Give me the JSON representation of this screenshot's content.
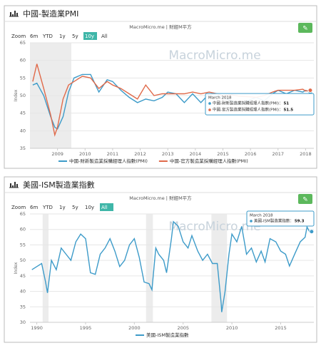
{
  "chart_data": [
    {
      "type": "line",
      "title": "中國-製造業PMI",
      "subtitle": "MacroMicro.me | 財經M平方",
      "watermark": "MacroMicro.me",
      "zoom_buttons": [
        "Zoom",
        "6m",
        "YTD",
        "1y",
        "5y",
        "10y",
        "All"
      ],
      "active_zoom": 5,
      "ylabel": "Index",
      "x": [
        2008.1,
        2008.25,
        2008.5,
        2008.75,
        2008.9,
        2009.0,
        2009.2,
        2009.4,
        2009.6,
        2009.9,
        2010.2,
        2010.5,
        2010.8,
        2011.0,
        2011.3,
        2011.6,
        2011.9,
        2012.2,
        2012.5,
        2012.8,
        2013.0,
        2013.3,
        2013.6,
        2013.9,
        2014.2,
        2014.5,
        2014.8,
        2015.0,
        2015.3,
        2015.6,
        2015.9,
        2016.2,
        2016.5,
        2016.8,
        2017.0,
        2017.3,
        2017.6,
        2017.9,
        2018.0,
        2018.17
      ],
      "series": [
        {
          "name": "中國-財新製造業採購經理人指數(PMI)",
          "color": "#3d9bc9",
          "values": [
            53,
            53.5,
            50,
            44,
            41,
            40.5,
            44,
            51,
            55,
            56,
            56,
            51,
            54.5,
            54,
            51.5,
            49.5,
            48,
            49,
            48.5,
            49.5,
            51,
            50.5,
            48,
            50.5,
            48,
            50.5,
            50,
            49.5,
            48.5,
            47.5,
            48.5,
            49.5,
            48.5,
            50.5,
            51.5,
            50.5,
            51.5,
            51,
            51.5,
            51
          ]
        },
        {
          "name": "中國-官方製造業採購經理人指數(PMI)",
          "color": "#e06a4a",
          "values": [
            54,
            59,
            52,
            44.5,
            38.8,
            41,
            49,
            53,
            54,
            55.5,
            55,
            52,
            54,
            53,
            52,
            50.5,
            49,
            53,
            50,
            50.5,
            50.5,
            50.5,
            50.5,
            51,
            50.5,
            51,
            50.5,
            49.8,
            50.2,
            49.8,
            49.7,
            49.5,
            50,
            51,
            51.5,
            51.5,
            51.5,
            51.8,
            51.3,
            51.5
          ]
        }
      ],
      "xlim": [
        2008.0,
        2018.3
      ],
      "xticks": [
        2009,
        2010,
        2011,
        2012,
        2013,
        2014,
        2015,
        2016,
        2017,
        2018
      ],
      "ylim": [
        35,
        65
      ],
      "yticks": [
        35,
        40,
        45,
        50,
        55,
        60,
        65
      ],
      "grid": true,
      "bands": [
        [
          2008.0,
          2009.5
        ]
      ],
      "tooltip": {
        "title": "March 2018",
        "rows": [
          {
            "label": "中國-財新製造業採購經理人指數(PMI)：",
            "value": 51
          },
          {
            "label": "中國-官方製造業採購經理人指數(PMI)：",
            "value": 51.5
          }
        ]
      }
    },
    {
      "type": "line",
      "title": "美國-ISM製造業指數",
      "subtitle": "MacroMicro.me | 財經M平方",
      "watermark": "MacroMicro.me",
      "zoom_buttons": [
        "Zoom",
        "6m",
        "YTD",
        "1y",
        "5y",
        "10y",
        "All"
      ],
      "active_zoom": 6,
      "ylabel": "Index",
      "x": [
        1989.5,
        1990.0,
        1990.5,
        1990.9,
        1991.1,
        1991.5,
        1992.0,
        1992.5,
        1993.0,
        1993.5,
        1994.0,
        1994.5,
        1995.0,
        1995.5,
        1996.0,
        1996.5,
        1997.0,
        1997.5,
        1998.0,
        1998.5,
        1999.0,
        1999.5,
        2000.0,
        2000.5,
        2001.0,
        2001.5,
        2001.8,
        2002.2,
        2002.5,
        2003.0,
        2003.3,
        2003.8,
        2004.0,
        2004.5,
        2005.0,
        2005.5,
        2005.9,
        2006.5,
        2007.0,
        2007.5,
        2008.0,
        2008.5,
        2008.9,
        2008.95,
        2009.3,
        2009.7,
        2010.0,
        2010.5,
        2011.0,
        2011.5,
        2012.0,
        2012.5,
        2013.0,
        2013.4,
        2013.9,
        2014.5,
        2015.0,
        2015.5,
        2015.9,
        2016.5,
        2017.0,
        2017.5,
        2017.7,
        2018.0,
        2018.17
      ],
      "series": [
        {
          "name": "美國-ISM製造業指數",
          "color": "#3d9bc9",
          "values": [
            47,
            48,
            49,
            43,
            39.5,
            50,
            47,
            54,
            52,
            50,
            56,
            58.5,
            57,
            46,
            45.5,
            52,
            54,
            57,
            53,
            48,
            50,
            55,
            57,
            51,
            43,
            42.5,
            40.5,
            54,
            52,
            50,
            46,
            57,
            62.5,
            61,
            56,
            54,
            58,
            53,
            50,
            52,
            49,
            49,
            36,
            33.3,
            40,
            52,
            58.5,
            56,
            61,
            52,
            54,
            49.5,
            53,
            49.5,
            57,
            56,
            53,
            52,
            48.2,
            52.5,
            56,
            57.5,
            60.8,
            59,
            59.3
          ]
        }
      ],
      "xlim": [
        1989.3,
        2018.4
      ],
      "xticks": [
        1990,
        1995,
        2000,
        2005,
        2010,
        2015
      ],
      "ylim": [
        30,
        65
      ],
      "yticks": [
        30,
        35,
        40,
        45,
        50,
        55,
        60,
        65
      ],
      "grid": true,
      "bands": [
        [
          1990.6,
          1991.2
        ],
        [
          2001.2,
          2001.9
        ],
        [
          2007.9,
          2009.5
        ]
      ],
      "tooltip": {
        "title": "March 2018",
        "rows": [
          {
            "label": "美國-ISM製造業指數：",
            "value": 59.3
          }
        ]
      }
    }
  ]
}
